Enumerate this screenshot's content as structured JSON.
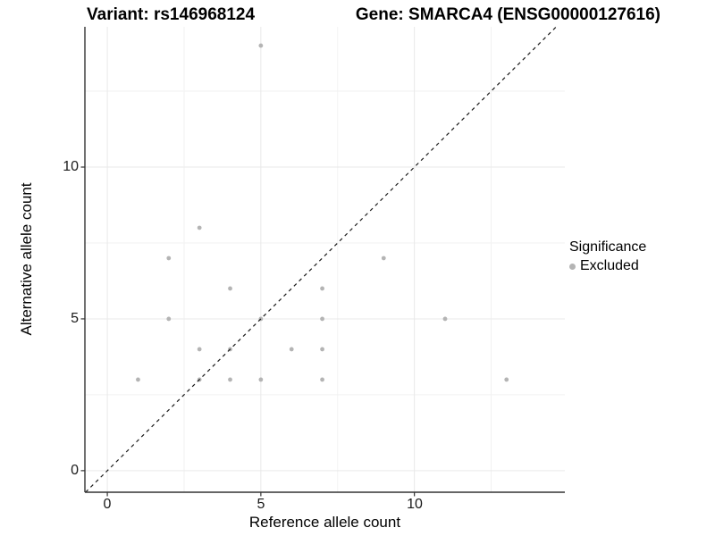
{
  "titles": {
    "left": "Variant: rs146968124",
    "right": "Gene: SMARCA4 (ENSG00000127616)"
  },
  "axes": {
    "x_label": "Reference allele count",
    "y_label": "Alternative allele count",
    "x_tick_labels": [
      "0",
      "5",
      "10"
    ],
    "y_tick_labels": [
      "0",
      "5",
      "10"
    ]
  },
  "legend": {
    "title": "Significance",
    "items": [
      {
        "label": "Excluded",
        "color": "#b4b4b4"
      }
    ]
  },
  "colors": {
    "point": "#b4b4b4",
    "grid_major": "#e9e9e9",
    "grid_minor": "#f2f2f2",
    "axis": "#333333",
    "tick": "#333333",
    "identity_line": "#1a1a1a",
    "background": "#ffffff"
  },
  "chart_data": {
    "type": "scatter",
    "title_left": "Variant: rs146968124",
    "title_right": "Gene: SMARCA4 (ENSG00000127616)",
    "xlabel": "Reference allele count",
    "ylabel": "Alternative allele count",
    "xlim": [
      -0.73,
      14.9
    ],
    "ylim": [
      -0.71,
      14.62
    ],
    "x_major_ticks": [
      0,
      5,
      10
    ],
    "y_major_ticks": [
      0,
      5,
      10
    ],
    "x_minor_ticks": [
      2.5,
      7.5,
      12.5
    ],
    "y_minor_ticks": [
      2.5,
      7.5,
      12.5
    ],
    "grid": true,
    "legend_title": "Significance",
    "legend_position": "right",
    "identity_line": {
      "slope": 1,
      "intercept": 0,
      "style": "dashed"
    },
    "series": [
      {
        "name": "Excluded",
        "points": [
          [
            1,
            3
          ],
          [
            2,
            5
          ],
          [
            2,
            7
          ],
          [
            3,
            3
          ],
          [
            3,
            4
          ],
          [
            3,
            8
          ],
          [
            4,
            3
          ],
          [
            4,
            4
          ],
          [
            4,
            6
          ],
          [
            5,
            3
          ],
          [
            5,
            5
          ],
          [
            5,
            14
          ],
          [
            6,
            4
          ],
          [
            7,
            3
          ],
          [
            7,
            4
          ],
          [
            7,
            5
          ],
          [
            7,
            6
          ],
          [
            9,
            7
          ],
          [
            11,
            5
          ],
          [
            13,
            3
          ]
        ]
      }
    ]
  }
}
